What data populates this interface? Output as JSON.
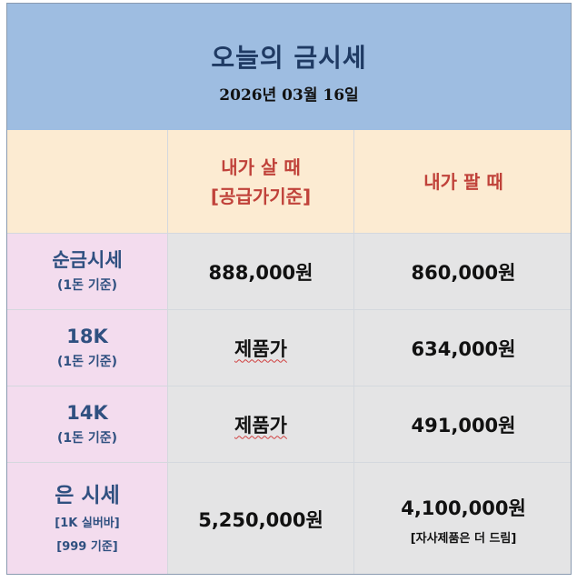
{
  "header": {
    "title": "오늘의 금시세",
    "date": "2026년 03월 16일"
  },
  "columns": {
    "buy": {
      "line1": "내가 살 때",
      "line2": "[공급가기준]"
    },
    "sell": "내가 팔 때"
  },
  "rows": [
    {
      "label": "순금시세",
      "sub": [
        "(1돈 기준)"
      ],
      "buy": "888,000원",
      "sell": "860,000원"
    },
    {
      "label": "18K",
      "sub": [
        "(1돈 기준)"
      ],
      "buy": "제품가",
      "sell": "634,000원"
    },
    {
      "label": "14K",
      "sub": [
        "(1돈 기준)"
      ],
      "buy": "제품가",
      "sell": "491,000원"
    },
    {
      "label": "은 시세",
      "sub": [
        "[1K 실버바]",
        "[999 기준]"
      ],
      "buy": "5,250,000원",
      "sell": "4,100,000원",
      "sell_note": "[자사제품은 더 드림]"
    }
  ],
  "colors": {
    "header_bg": "#9ebde1",
    "column_header_bg": "#fcebd2",
    "label_bg": "#f3dcee",
    "value_bg": "#e4e4e5",
    "title": "#1f3a63",
    "column_header_text": "#c0423a",
    "label_text": "#2f5080"
  }
}
